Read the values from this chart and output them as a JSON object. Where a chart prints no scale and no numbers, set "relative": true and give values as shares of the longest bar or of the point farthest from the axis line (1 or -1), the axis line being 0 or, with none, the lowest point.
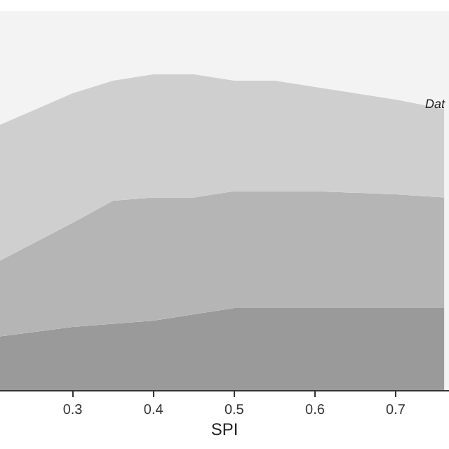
{
  "chart_data": {
    "type": "area",
    "stacked": true,
    "relative": true,
    "xlabel": "SPI",
    "annotations": [
      "Dat"
    ],
    "x": [
      0.21,
      0.3,
      0.35,
      0.4,
      0.45,
      0.5,
      0.55,
      0.6,
      0.7,
      0.76
    ],
    "xlim": [
      0.21,
      0.766
    ],
    "xticks": [
      0.3,
      0.4,
      0.5,
      0.6,
      0.7
    ],
    "series": [
      {
        "color": "#9a9a9a",
        "values": [
          0.17,
          0.2,
          0.21,
          0.22,
          0.24,
          0.26,
          0.26,
          0.26,
          0.26,
          0.26
        ]
      },
      {
        "color": "#b5b5b5",
        "values": [
          0.24,
          0.33,
          0.39,
          0.39,
          0.37,
          0.37,
          0.37,
          0.37,
          0.36,
          0.35
        ]
      },
      {
        "color": "#cfcfcf",
        "values": [
          0.43,
          0.41,
          0.38,
          0.39,
          0.39,
          0.35,
          0.35,
          0.33,
          0.3,
          0.28
        ]
      }
    ]
  }
}
